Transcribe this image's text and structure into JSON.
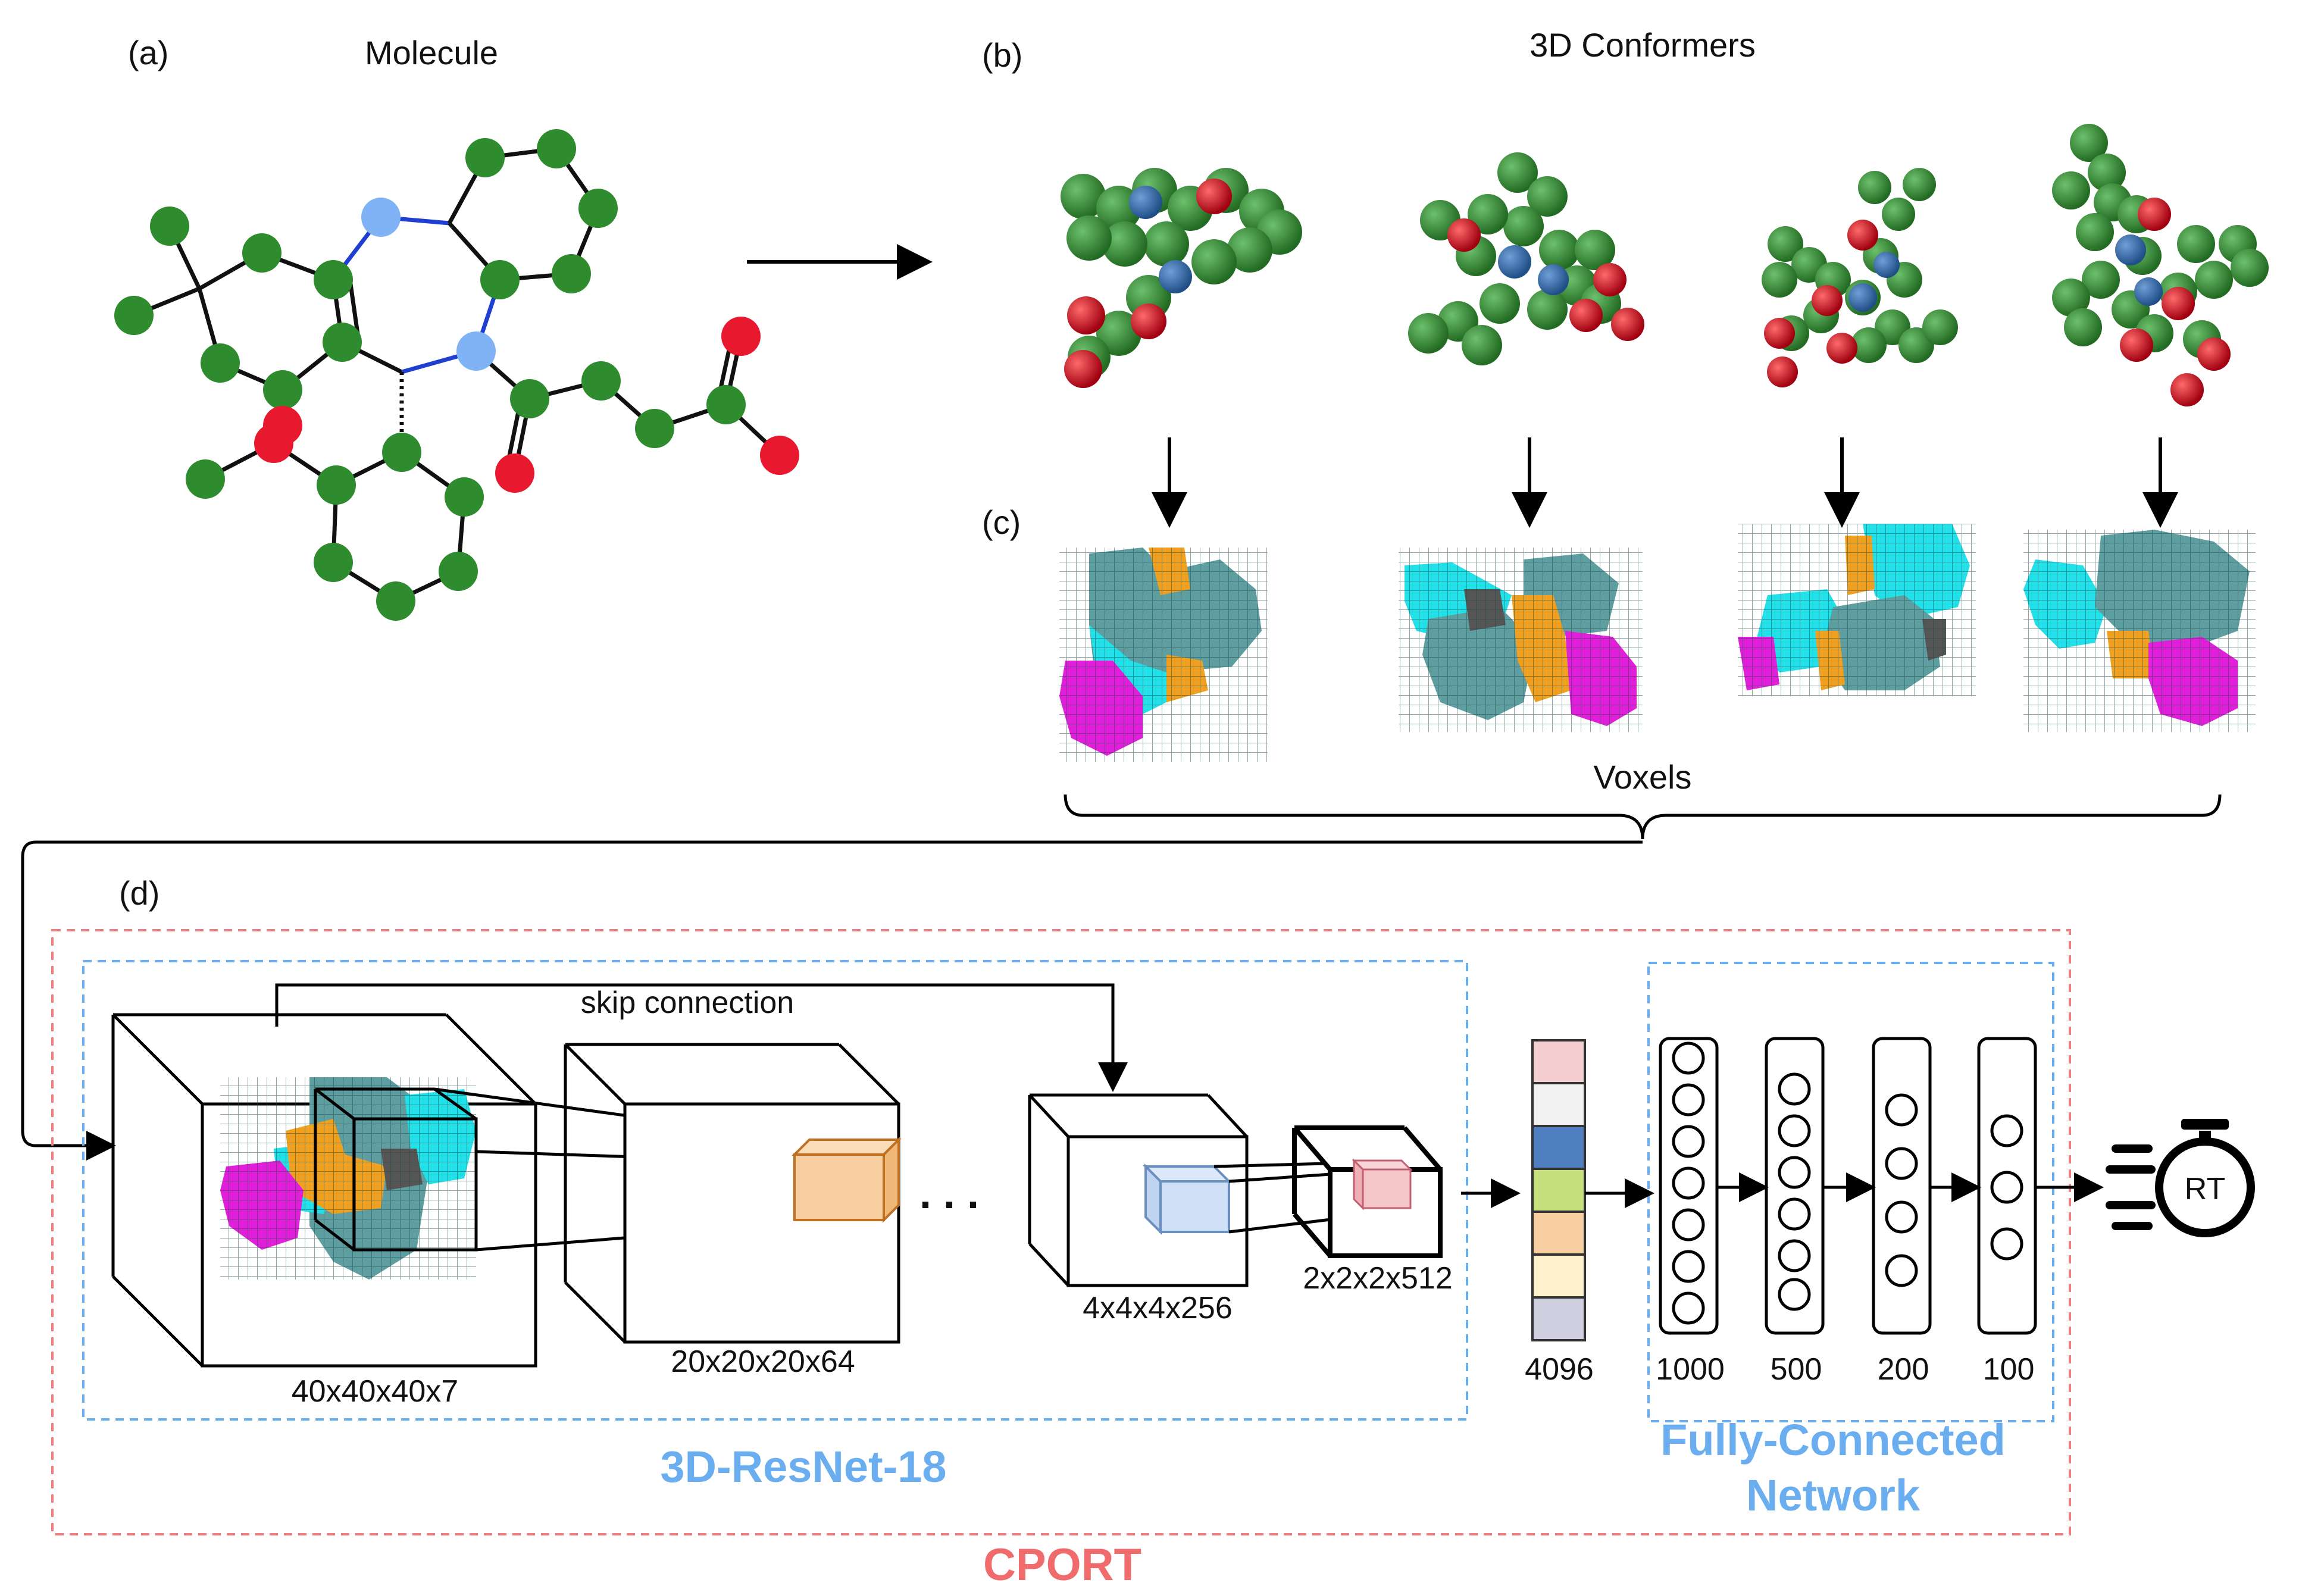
{
  "panels": {
    "a": {
      "tag": "(a)",
      "title": "Molecule"
    },
    "b": {
      "tag": "(b)",
      "title": "3D Conformers"
    },
    "c": {
      "tag": "(c)",
      "caption": "Voxels"
    },
    "d": {
      "tag": "(d)"
    }
  },
  "resnet": {
    "name": "3D-ResNet-18",
    "skip_label": "skip connection",
    "layers": [
      "40x40x40x7",
      "20x20x20x64",
      "4x4x4x256",
      "2x2x2x512"
    ],
    "ellipsis": ". . ."
  },
  "feature_vector": {
    "size": "4096"
  },
  "fc": {
    "name_line1": "Fully-Connected",
    "name_line2": "Network",
    "layers": [
      "1000",
      "500",
      "200",
      "100"
    ]
  },
  "output": {
    "label": "RT"
  },
  "model": {
    "name": "CPORT"
  },
  "colors": {
    "carbon": "#2e8b2e",
    "nitrogen": "#7fb3f5",
    "oxygen": "#e8182e",
    "voxel_carbon": "#5f9ea0",
    "voxel_cyan": "#22e0e8",
    "voxel_orange": "#f0a020",
    "voxel_magenta": "#e020d8",
    "resnet_border": "#6aaef0",
    "cport_border": "#f08080",
    "cport_text": "#f06b6b",
    "fc_text": "#6aaef0"
  }
}
